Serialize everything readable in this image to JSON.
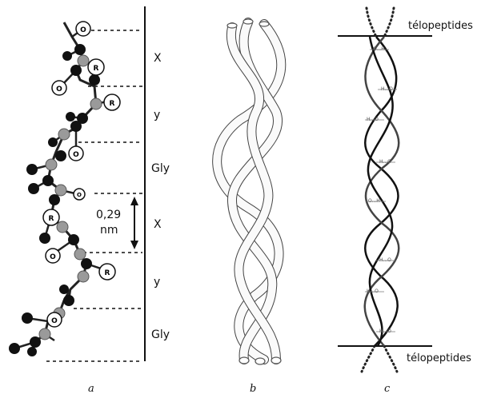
{
  "panel_a": {
    "segments": [
      "X",
      "y",
      "Gly",
      "X",
      "y",
      "Gly"
    ],
    "distance_value": "0,29",
    "distance_unit": "nm",
    "atom_labels": [
      "O",
      "R",
      "O",
      "R",
      "O",
      "O",
      "R",
      "O",
      "R",
      "O"
    ],
    "caption": "a"
  },
  "panel_b": {
    "caption": "b"
  },
  "panel_c": {
    "top_label": "télopeptides",
    "bottom_label": "télopeptides",
    "hbond_label": "H...O",
    "hbond_label_alt": "O...H",
    "caption": "c"
  }
}
